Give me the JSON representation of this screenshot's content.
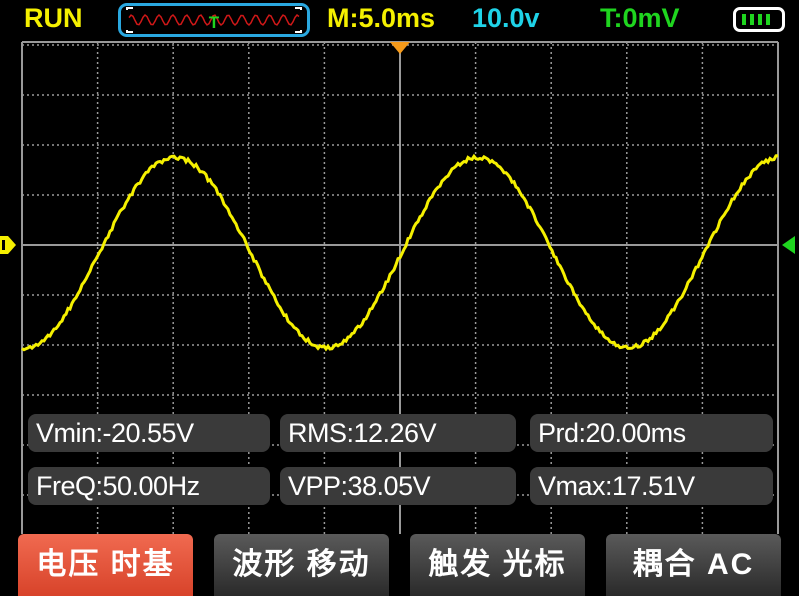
{
  "header": {
    "status": "RUN",
    "timebase": "M:5.0ms",
    "volts_per_div": "10.0v",
    "trigger_level": "T:0mV",
    "battery_level": 1.0,
    "battery_bars": 4
  },
  "colors": {
    "waveform": "#f5f000",
    "grid": "#9a9a9a",
    "trigger_marker": "#f59a1a",
    "channel_marker": "#f5f000",
    "level_marker": "#1fd51f",
    "active_button": "#e04e33",
    "mini_wave": "#d01818"
  },
  "measurements": [
    {
      "label": "Vmin:-20.55V"
    },
    {
      "label": "RMS:12.26V"
    },
    {
      "label": "Prd:20.00ms"
    },
    {
      "label": "FreQ:50.00Hz"
    },
    {
      "label": "VPP:38.05V"
    },
    {
      "label": "Vmax:17.51V"
    }
  ],
  "buttons": [
    {
      "label": "电压 时基",
      "active": true
    },
    {
      "label": "波形 移动",
      "active": false
    },
    {
      "label": "触发 光标",
      "active": false
    },
    {
      "label": "耦合 AC",
      "active": false
    }
  ],
  "chart_data": {
    "type": "line",
    "waveform": "sine",
    "time_per_div_ms": 5.0,
    "volts_per_div": 10.0,
    "period_ms": 20.0,
    "vmax": 17.51,
    "vmin": -20.55,
    "divisions_x": 10,
    "grid": true
  }
}
